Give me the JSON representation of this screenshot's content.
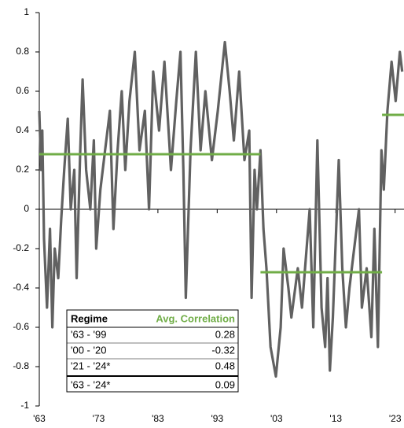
{
  "chart_data": {
    "type": "line",
    "x": [
      1963.0,
      1963.3,
      1963.5,
      1963.8,
      1964.3,
      1964.8,
      1965.2,
      1965.6,
      1966.2,
      1966.7,
      1967.2,
      1967.8,
      1968.3,
      1968.9,
      1969.3,
      1969.9,
      1970.3,
      1970.9,
      1971.6,
      1972.2,
      1972.6,
      1973.3,
      1974.1,
      1974.9,
      1975.5,
      1976.2,
      1976.9,
      1977.5,
      1978.2,
      1979.1,
      1979.9,
      1980.8,
      1981.5,
      1982.2,
      1983.2,
      1984.1,
      1985.2,
      1986.1,
      1986.8,
      1987.3,
      1987.7,
      1988.5,
      1989.4,
      1990.2,
      1991.0,
      1992.1,
      1993.1,
      1994.3,
      1995.1,
      1995.8,
      1996.7,
      1997.6,
      1998.4,
      1998.8,
      1999.3,
      1999.7,
      2000.3,
      2000.8,
      2001.3,
      2002.0,
      2002.9,
      2003.7,
      2004.2,
      2005.0,
      2005.5,
      2006.6,
      2007.3,
      2008.6,
      2009.2,
      2009.9,
      2010.6,
      2011.2,
      2011.6,
      2012.0,
      2012.5,
      2013.5,
      2014.1,
      2014.7,
      2015.3,
      2016.1,
      2016.9,
      2017.4,
      2018.2,
      2019.0,
      2019.5,
      2020.1,
      2020.7,
      2021.1,
      2021.7,
      2022.4,
      2023.1,
      2023.8,
      2024.2
    ],
    "series": [
      {
        "color": "#616161",
        "values": [
          0.5,
          0.2,
          0.4,
          -0.15,
          -0.5,
          -0.1,
          -0.6,
          -0.2,
          -0.35,
          -0.05,
          0.2,
          0.46,
          0.0,
          0.2,
          -0.35,
          0.3,
          0.66,
          0.2,
          0.0,
          0.35,
          -0.2,
          0.1,
          0.3,
          0.5,
          -0.1,
          0.3,
          0.6,
          0.2,
          0.55,
          0.8,
          0.3,
          0.5,
          0.0,
          0.7,
          0.4,
          0.75,
          0.2,
          0.55,
          0.8,
          0.2,
          -0.45,
          0.3,
          0.8,
          0.3,
          0.6,
          0.25,
          0.5,
          0.85,
          0.6,
          0.35,
          0.7,
          0.25,
          0.4,
          -0.45,
          0.2,
          0.0,
          0.3,
          -0.1,
          -0.3,
          -0.7,
          -0.85,
          -0.6,
          -0.2,
          -0.4,
          -0.55,
          -0.3,
          -0.5,
          0.0,
          -0.6,
          0.35,
          -0.5,
          -0.7,
          -0.35,
          -0.82,
          -0.55,
          0.25,
          -0.3,
          -0.6,
          -0.4,
          -0.2,
          0.0,
          -0.5,
          -0.3,
          -0.65,
          -0.1,
          -0.7,
          0.3,
          0.1,
          0.5,
          0.75,
          0.55,
          0.8,
          0.7
        ]
      }
    ],
    "avg_color": "#70ad47",
    "xlim": [
      1963,
      2024.5
    ],
    "xticks": [
      {
        "value": 1963,
        "label": "'63"
      },
      {
        "value": 1973,
        "label": "'73"
      },
      {
        "value": 1983,
        "label": "'83"
      },
      {
        "value": 1993,
        "label": "'93"
      },
      {
        "value": 2003,
        "label": "'03"
      },
      {
        "value": 2013,
        "label": "'13"
      },
      {
        "value": 2023,
        "label": "'23"
      }
    ],
    "ylim": [
      -1,
      1
    ],
    "yticks": [
      1,
      0.8,
      0.6,
      0.4,
      0.2,
      0,
      -0.2,
      -0.4,
      -0.6,
      -0.8,
      -1
    ],
    "table": {
      "header": [
        "Regime",
        "Avg. Correlation"
      ],
      "rows": [
        {
          "regime": "'63 - '99",
          "value": 0.28,
          "x": [
            1963,
            2000.3
          ]
        },
        {
          "regime": "'00 - '20",
          "value": -0.32,
          "x": [
            2000.3,
            2020.8
          ]
        },
        {
          "regime": "'21 - '24*",
          "value": 0.48,
          "x": [
            2020.8,
            2024.5
          ]
        },
        {
          "regime": "'63 - '24*",
          "value": 0.09
        }
      ]
    }
  }
}
